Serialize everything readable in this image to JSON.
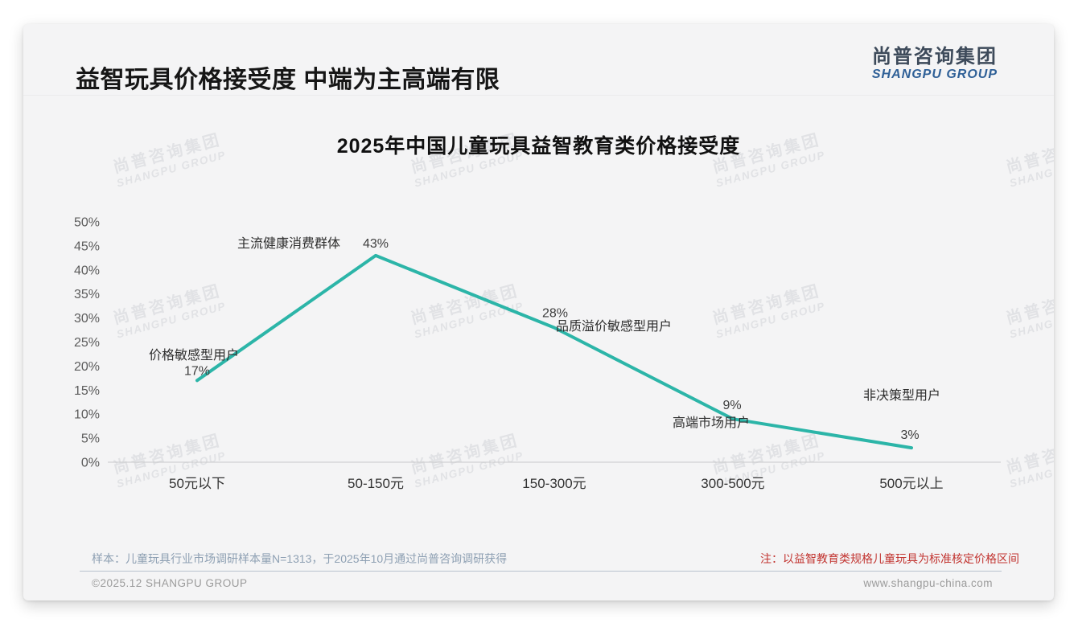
{
  "header": {
    "title": "益智玩具价格接受度 中端为主高端有限",
    "logo_cn": "尚普咨询集团",
    "logo_en": "SHANGPU GROUP"
  },
  "watermark": {
    "line1": "尚普咨询集团",
    "line2": "SHANGPU GROUP"
  },
  "chart_data": {
    "type": "line",
    "title": "2025年中国儿童玩具益智教育类价格接受度",
    "categories": [
      "50元以下",
      "50-150元",
      "150-300元",
      "300-500元",
      "500元以上"
    ],
    "values": [
      17,
      43,
      28,
      9,
      3
    ],
    "value_labels": [
      "17%",
      "43%",
      "28%",
      "9%",
      "3%"
    ],
    "annotations": [
      "价格敏感型用户",
      "主流健康消费群体",
      "品质溢价敏感型用户",
      "高端市场用户",
      "非决策型用户"
    ],
    "xlabel": "",
    "ylabel": "",
    "ylim": [
      0,
      50
    ],
    "yticks": [
      0,
      5,
      10,
      15,
      20,
      25,
      30,
      35,
      40,
      45,
      50
    ],
    "ytick_labels": [
      "0%",
      "5%",
      "10%",
      "15%",
      "20%",
      "25%",
      "30%",
      "35%",
      "40%",
      "45%",
      "50%"
    ],
    "grid": false,
    "legend": "none",
    "line_color": "#2cb5a8"
  },
  "footer": {
    "sample_note": "样本：儿童玩具行业市场调研样本量N=1313，于2025年10月通过尚普咨询调研获得",
    "price_note": "注：以益智教育类规格儿童玩具为标准核定价格区间",
    "copyright": "©2025.12 SHANGPU GROUP",
    "website": "www.shangpu-china.com"
  },
  "colors": {
    "series_line": "#2cb5a8",
    "note_red": "#c23531",
    "logo_blue": "#2f6097",
    "logo_dark": "#3d4a5a",
    "card_bg": "#f4f4f5"
  }
}
